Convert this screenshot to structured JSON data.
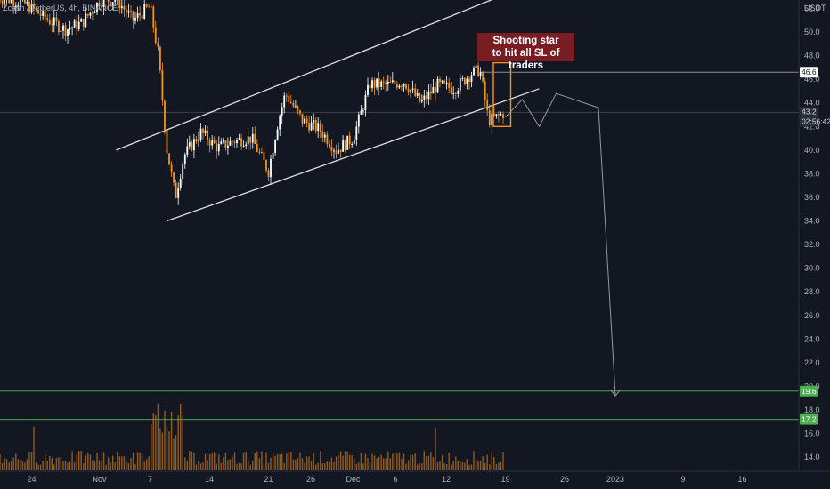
{
  "symbol": {
    "ticker": "Zcash / TetherUS, 4h, BINANCE"
  },
  "annotation": {
    "line1": "Shooting star",
    "line2": "to hit all SL of traders"
  },
  "price_axis": {
    "currency": "USDT"
  },
  "colors": {
    "background": "#131722",
    "candle_up": "#ffffff",
    "candle_down": "#f7931a",
    "volume": "#f7931a",
    "channel": "#e0e0e0",
    "target_line": "#4caf50",
    "label_green": "#4caf50",
    "label_bg": "#ffffff",
    "annotation_bg": "#7a1d23",
    "projection": "#9598a1"
  },
  "chart_data": {
    "type": "candlestick",
    "title": "Zcash / TetherUS, 4h, BINANCE",
    "y_axis": {
      "label": "USDT",
      "range": [
        12.8,
        53.0
      ],
      "scale": "linear",
      "ticks": [
        14.0,
        16.0,
        18.0,
        20.0,
        22.0,
        24.0,
        26.0,
        28.0,
        30.0,
        32.0,
        34.0,
        36.0,
        38.0,
        40.0,
        42.0,
        44.0,
        46.0,
        48.0,
        50.0,
        52.0
      ]
    },
    "x_axis": {
      "ticks": [
        "24",
        "Nov",
        "7",
        "14",
        "21",
        "26",
        "Dec",
        "6",
        "12",
        "19",
        "26",
        "2023",
        "9",
        "16"
      ]
    },
    "grid": false,
    "price_labels": [
      {
        "value": "46.6",
        "kind": "level"
      },
      {
        "value": "43.2",
        "kind": "last"
      },
      {
        "value": "02:56:42",
        "kind": "countdown"
      },
      {
        "value": "19.6",
        "kind": "target"
      },
      {
        "value": "17.2",
        "kind": "target"
      }
    ],
    "horizontal_levels": [
      {
        "price": 46.6,
        "color": "#9598a1"
      },
      {
        "price": 43.2,
        "color": "#5d606b"
      },
      {
        "price": 19.6,
        "color": "#4caf50"
      },
      {
        "price": 17.2,
        "color": "#4caf50"
      }
    ],
    "channel": {
      "upper": [
        {
          "date": "Nov 3",
          "price": 40.0
        },
        {
          "date": "Dec 19",
          "price": 53.2
        }
      ],
      "lower": [
        {
          "date": "Nov 9",
          "price": 34.0
        },
        {
          "date": "Dec 23",
          "price": 45.2
        }
      ]
    },
    "projection_path": [
      {
        "date": "Dec 19",
        "price": 42.8
      },
      {
        "date": "Dec 21",
        "price": 44.3
      },
      {
        "date": "Dec 23",
        "price": 42.0
      },
      {
        "date": "Dec 25",
        "price": 44.8
      },
      {
        "date": "Dec 30",
        "price": 43.6
      },
      {
        "date": "Jan 1",
        "price": 19.2
      }
    ],
    "highlight_box": {
      "from": "Dec 18",
      "to": "Dec 19",
      "price_low": 42.0,
      "price_high": 47.4
    },
    "price_path": [
      {
        "date": "Oct 20",
        "price": 53.0
      },
      {
        "date": "Oct 23",
        "price": 52.5
      },
      {
        "date": "Oct 26",
        "price": 51.0
      },
      {
        "date": "Oct 28",
        "price": 50.2
      },
      {
        "date": "Oct 30",
        "price": 50.8
      },
      {
        "date": "Nov 1",
        "price": 52.6
      },
      {
        "date": "Nov 3",
        "price": 52.8
      },
      {
        "date": "Nov 5",
        "price": 51.0
      },
      {
        "date": "Nov 7",
        "price": 52.2
      },
      {
        "date": "Nov 8",
        "price": 48.0
      },
      {
        "date": "Nov 9",
        "price": 40.0
      },
      {
        "date": "Nov 10",
        "price": 36.0
      },
      {
        "date": "Nov 11",
        "price": 39.5
      },
      {
        "date": "Nov 13",
        "price": 41.5
      },
      {
        "date": "Nov 15",
        "price": 40.2
      },
      {
        "date": "Nov 17",
        "price": 40.8
      },
      {
        "date": "Nov 19",
        "price": 41.0
      },
      {
        "date": "Nov 21",
        "price": 38.2
      },
      {
        "date": "Nov 22",
        "price": 42.0
      },
      {
        "date": "Nov 23",
        "price": 44.8
      },
      {
        "date": "Nov 25",
        "price": 42.5
      },
      {
        "date": "Nov 27",
        "price": 41.8
      },
      {
        "date": "Nov 29",
        "price": 40.0
      },
      {
        "date": "Dec 1",
        "price": 41.0
      },
      {
        "date": "Dec 3",
        "price": 45.6
      },
      {
        "date": "Dec 5",
        "price": 45.5
      },
      {
        "date": "Dec 7",
        "price": 45.8
      },
      {
        "date": "Dec 9",
        "price": 44.0
      },
      {
        "date": "Dec 11",
        "price": 45.5
      },
      {
        "date": "Dec 13",
        "price": 45.2
      },
      {
        "date": "Dec 15",
        "price": 46.5
      },
      {
        "date": "Dec 16",
        "price": 46.8
      },
      {
        "date": "Dec 17",
        "price": 42.5
      },
      {
        "date": "Dec 18",
        "price": 42.8
      },
      {
        "date": "Dec 19",
        "price": 43.2
      }
    ]
  }
}
